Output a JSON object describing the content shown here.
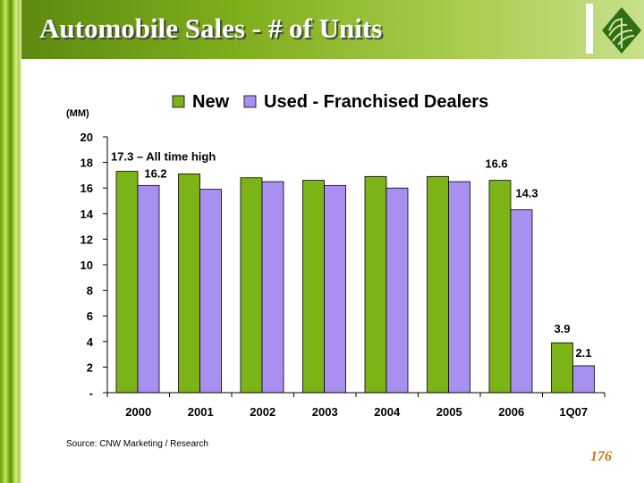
{
  "slide": {
    "title": "Automobile Sales - # of Units",
    "source": "Source: CNW Marketing / Research",
    "page_number": "176"
  },
  "colors": {
    "new_series": "#7cb418",
    "used_series": "#a98ff0",
    "header_green": "#7fae1c",
    "page_number": "#c9741a"
  },
  "chart_data": {
    "type": "bar",
    "title": "",
    "unit_label": "(MM)",
    "categories": [
      "2000",
      "2001",
      "2002",
      "2003",
      "2004",
      "2005",
      "2006",
      "1Q07"
    ],
    "series": [
      {
        "name": "New",
        "values": [
          17.3,
          17.1,
          16.8,
          16.6,
          16.9,
          16.9,
          16.6,
          3.9
        ]
      },
      {
        "name": "Used - Franchised Dealers",
        "values": [
          16.2,
          15.9,
          16.5,
          16.2,
          16.0,
          16.5,
          14.3,
          2.1
        ]
      }
    ],
    "ylim": [
      0,
      20
    ],
    "yticks": [
      {
        "value": 0,
        "label": "-"
      },
      {
        "value": 2,
        "label": "2"
      },
      {
        "value": 4,
        "label": "4"
      },
      {
        "value": 6,
        "label": "6"
      },
      {
        "value": 8,
        "label": "8"
      },
      {
        "value": 10,
        "label": "10"
      },
      {
        "value": 12,
        "label": "12"
      },
      {
        "value": 14,
        "label": "14"
      },
      {
        "value": 16,
        "label": "16"
      },
      {
        "value": 18,
        "label": "18"
      },
      {
        "value": 20,
        "label": "20"
      }
    ],
    "legend_position": "top",
    "grid": false,
    "data_labels": [
      {
        "series": 0,
        "index": 0,
        "text": "17.3 – All time high"
      },
      {
        "series": 1,
        "index": 0,
        "text": "16.2"
      },
      {
        "series": 0,
        "index": 6,
        "text": "16.6"
      },
      {
        "series": 1,
        "index": 6,
        "text": "14.3"
      },
      {
        "series": 0,
        "index": 7,
        "text": "3.9"
      },
      {
        "series": 1,
        "index": 7,
        "text": "2.1"
      }
    ]
  }
}
